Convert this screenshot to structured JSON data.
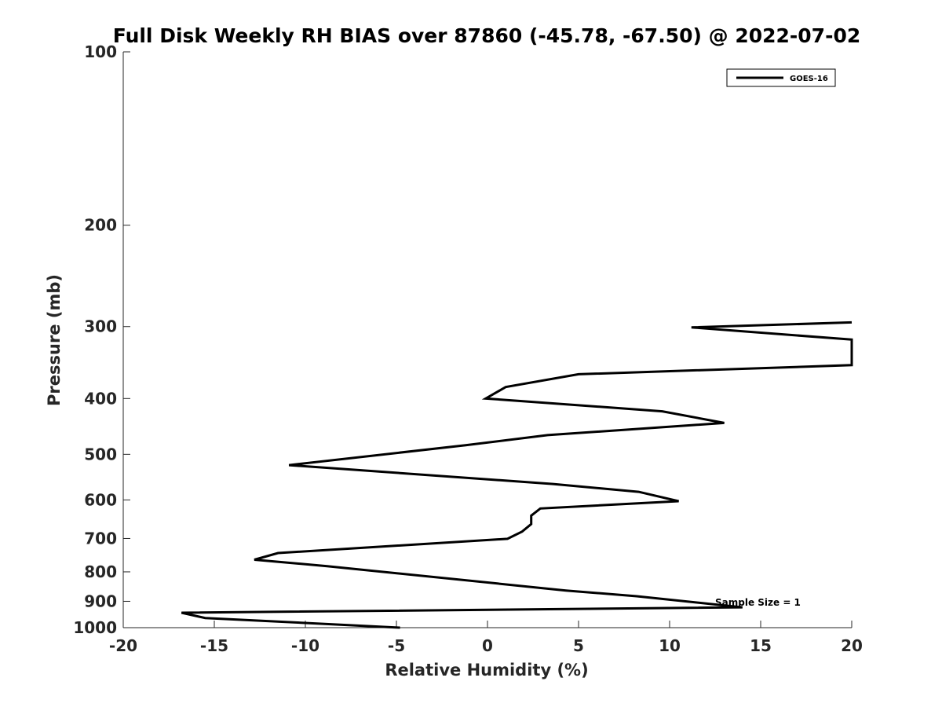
{
  "chart_data": {
    "type": "line",
    "title": "Full Disk Weekly RH BIAS over 87860 (-45.78, -67.50) @ 2022-07-02",
    "xlabel": "Relative Humidity (%)",
    "ylabel": "Pressure (mb)",
    "xlim": [
      -20,
      20
    ],
    "ylim": [
      100,
      1000
    ],
    "y_scale": "log",
    "y_reversed": true,
    "x_ticks": [
      -20,
      -15,
      -10,
      -5,
      0,
      5,
      10,
      15,
      20
    ],
    "x_tick_labels": [
      "-20",
      "-15",
      "-10",
      "-5",
      "0",
      "5",
      "10",
      "15",
      "20"
    ],
    "y_ticks": [
      100,
      200,
      300,
      400,
      500,
      600,
      700,
      800,
      900,
      1000
    ],
    "y_tick_labels": [
      "100",
      "200",
      "300",
      "400",
      "500",
      "600",
      "700",
      "800",
      "900",
      "1000"
    ],
    "grid": false,
    "legend_position": "top-right",
    "series": [
      {
        "name": "GOES-16",
        "color": "#000000",
        "points": [
          [
            20.0,
            295
          ],
          [
            11.2,
            301
          ],
          [
            20.0,
            316
          ],
          [
            20.0,
            350
          ],
          [
            5.0,
            363
          ],
          [
            1.0,
            382
          ],
          [
            -0.1,
            400
          ],
          [
            9.6,
            421
          ],
          [
            13.0,
            441
          ],
          [
            3.3,
            463
          ],
          [
            -1.2,
            482
          ],
          [
            -10.9,
            522
          ],
          [
            3.6,
            563
          ],
          [
            8.3,
            581
          ],
          [
            10.5,
            603
          ],
          [
            2.9,
            621
          ],
          [
            2.4,
            639
          ],
          [
            2.4,
            661
          ],
          [
            1.9,
            681
          ],
          [
            1.1,
            701
          ],
          [
            -11.5,
            742
          ],
          [
            -12.8,
            762
          ],
          [
            -8.8,
            782
          ],
          [
            4.3,
            862
          ],
          [
            8.2,
            882
          ],
          [
            14.0,
            922
          ],
          [
            -16.8,
            942
          ],
          [
            -15.5,
            962
          ],
          [
            -4.8,
            1000
          ]
        ]
      }
    ],
    "annotation": "Sample Size = 1"
  }
}
